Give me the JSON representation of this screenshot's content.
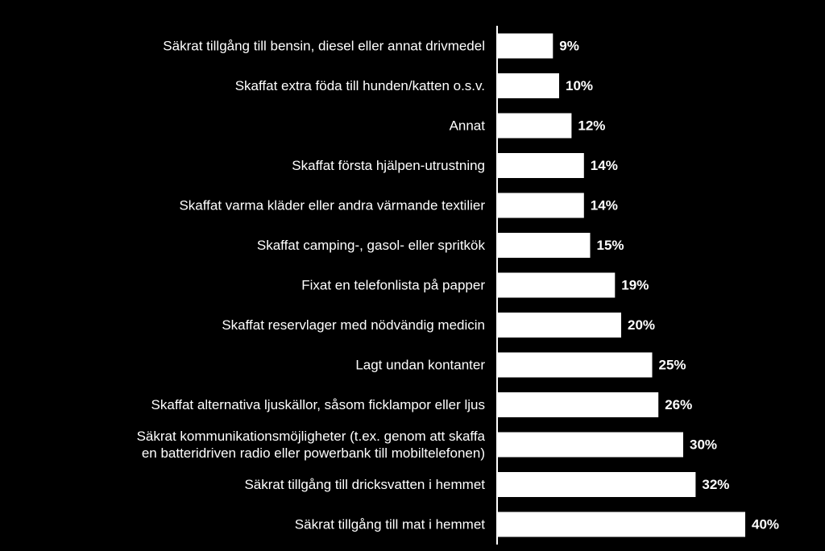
{
  "chart_data": {
    "type": "bar",
    "orientation": "horizontal",
    "categories": [
      [
        "Säkrat tillgång till bensin, diesel eller annat drivmedel"
      ],
      [
        "Skaffat extra föda till hunden/katten o.s.v."
      ],
      [
        "Annat"
      ],
      [
        "Skaffat första hjälpen-utrustning"
      ],
      [
        "Skaffat varma kläder eller andra värmande textilier"
      ],
      [
        "Skaffat camping-, gasol- eller spritkök"
      ],
      [
        "Fixat en telefonlista på papper"
      ],
      [
        "Skaffat reservlager med nödvändig medicin"
      ],
      [
        "Lagt undan kontanter"
      ],
      [
        "Skaffat alternativa ljuskällor, såsom ficklampor eller ljus"
      ],
      [
        "Säkrat kommunikationsmöjligheter (t.ex. genom att skaffa",
        "en batteridriven radio eller powerbank till mobiltelefonen)"
      ],
      [
        "Säkrat tillgång till dricksvatten i hemmet"
      ],
      [
        "Säkrat tillgång till mat i hemmet"
      ]
    ],
    "values": [
      9,
      10,
      12,
      14,
      14,
      15,
      19,
      20,
      25,
      26,
      30,
      32,
      40
    ],
    "value_labels": [
      "9%",
      "10%",
      "12%",
      "14%",
      "14%",
      "15%",
      "19%",
      "20%",
      "25%",
      "26%",
      "30%",
      "32%",
      "40%"
    ],
    "title": "",
    "xlabel": "",
    "ylabel": "",
    "xlim": [
      0,
      40
    ],
    "grid": false,
    "legend": "none",
    "colors": {
      "background": "#000000",
      "bar": "#ffffff",
      "axis": "#ffffff",
      "text": "#ffffff"
    }
  }
}
